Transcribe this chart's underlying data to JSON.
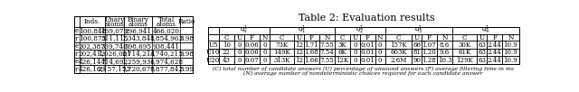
{
  "title": "Table 2: Evaluation results",
  "left_table": {
    "col0_pairs": [
      [
        "e",
        "r"
      ],
      [
        "e",
        "r"
      ],
      [
        "e",
        "r"
      ]
    ],
    "rows": [
      [
        "e",
        "100,848",
        "169,079",
        "296,941",
        "466,020",
        ""
      ],
      [
        "r",
        "100,873",
        "511,115",
        "1,343,848",
        "1,854,963",
        "3.98"
      ],
      [
        "e",
        "202,387",
        "339,746",
        "598,695",
        "938,441",
        ""
      ],
      [
        "r",
        "202,412",
        "1,026,001",
        "2,714,214",
        "3,740,215",
        "3.98"
      ],
      [
        "e",
        "426,144",
        "714,692",
        "1,259,936",
        "1,974,628",
        ""
      ],
      [
        "r",
        "426,169",
        "2,157,172",
        "5,720,670",
        "7,877,842",
        "3.99"
      ]
    ]
  },
  "right_table": {
    "query_names": [
      "$q_s^1$",
      "$q_1^1$",
      "$q_2^1$",
      "$q_3^1$",
      "$q_4^1$"
    ],
    "row_labels": [
      "U5",
      "U10",
      "U20"
    ],
    "rows": [
      [
        "10",
        "0",
        "0.06",
        "0",
        "73K",
        "12",
        "1.71",
        "7.55",
        "3K",
        "0",
        "0.01",
        "0",
        "157K",
        "66",
        "1.07",
        "8.6",
        "30K",
        "63",
        "2.44",
        "10.9"
      ],
      [
        "22",
        "0",
        "0.06",
        "0",
        "149K",
        "12",
        "1.68",
        "7.54",
        "6K",
        "0",
        "0.01",
        "0",
        "603K",
        "81",
        "1.20",
        "9.6",
        "61K",
        "63",
        "2.44",
        "10.9"
      ],
      [
        "43",
        "0",
        "0.07",
        "0",
        "313K",
        "12",
        "1.66",
        "7.55",
        "12K",
        "0",
        "0.01",
        "0",
        "2.6M",
        "90",
        "1.28",
        "10.3",
        "129K",
        "63",
        "2.44",
        "10.9"
      ]
    ],
    "footnote1": "(C) total number of candidate answers (U) percentage of unsound answers (F) average filtering time in ms",
    "footnote2": "(N) average number of nondeterministic choices required for each candidate answer"
  },
  "bg_color": "#ffffff",
  "border_color": "#000000",
  "text_color": "#000000",
  "font_size": 5.2,
  "title_font_size": 8.0
}
